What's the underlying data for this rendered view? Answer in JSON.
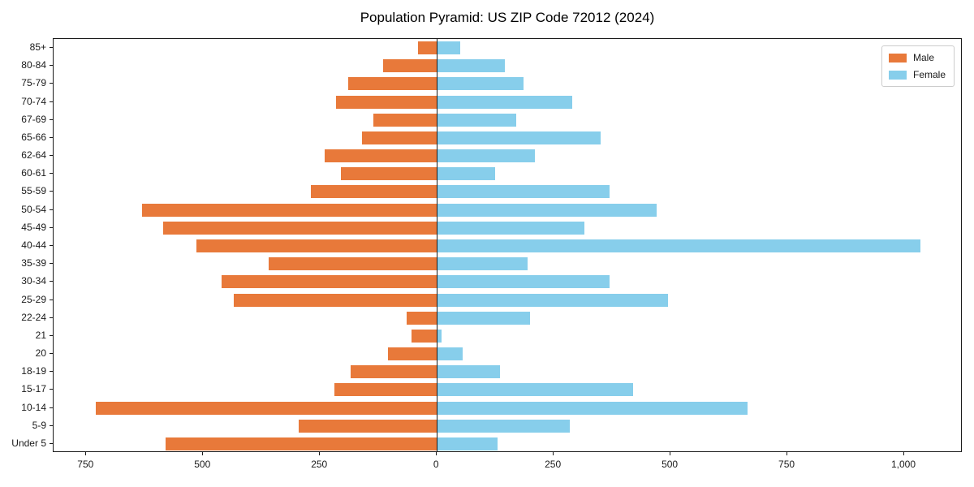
{
  "chart_data": {
    "type": "bar",
    "variant": "population_pyramid",
    "orientation": "horizontal",
    "title": "Population Pyramid: US ZIP Code 72012 (2024)",
    "xlabel": "",
    "ylabel": "",
    "grid": false,
    "legend_position": "upper-right",
    "age_groups": [
      "85+",
      "80-84",
      "75-79",
      "70-74",
      "67-69",
      "65-66",
      "62-64",
      "60-61",
      "55-59",
      "50-54",
      "45-49",
      "40-44",
      "35-39",
      "30-34",
      "25-29",
      "22-24",
      "21",
      "20",
      "18-19",
      "15-17",
      "10-14",
      "5-9",
      "Under 5"
    ],
    "series": [
      {
        "name": "Male",
        "color": "#e8793a",
        "side": "left",
        "values": [
          40,
          115,
          190,
          215,
          135,
          160,
          240,
          205,
          270,
          630,
          585,
          515,
          360,
          460,
          435,
          65,
          55,
          105,
          185,
          220,
          730,
          295,
          580
        ]
      },
      {
        "name": "Female",
        "color": "#87ceeb",
        "side": "right",
        "values": [
          50,
          145,
          185,
          290,
          170,
          350,
          210,
          125,
          370,
          470,
          315,
          1035,
          195,
          370,
          495,
          200,
          10,
          55,
          135,
          420,
          665,
          285,
          130
        ]
      }
    ],
    "xlim": [
      -820,
      1125
    ],
    "x_ticks": [
      {
        "value": -750,
        "label": "750"
      },
      {
        "value": -500,
        "label": "500"
      },
      {
        "value": -250,
        "label": "250"
      },
      {
        "value": 0,
        "label": "0"
      },
      {
        "value": 250,
        "label": "250"
      },
      {
        "value": 500,
        "label": "500"
      },
      {
        "value": 750,
        "label": "750"
      },
      {
        "value": 1000,
        "label": "1,000"
      }
    ]
  },
  "colors": {
    "male": "#e8793a",
    "female": "#87ceeb",
    "axis": "#1a1a1a",
    "background": "#ffffff"
  }
}
